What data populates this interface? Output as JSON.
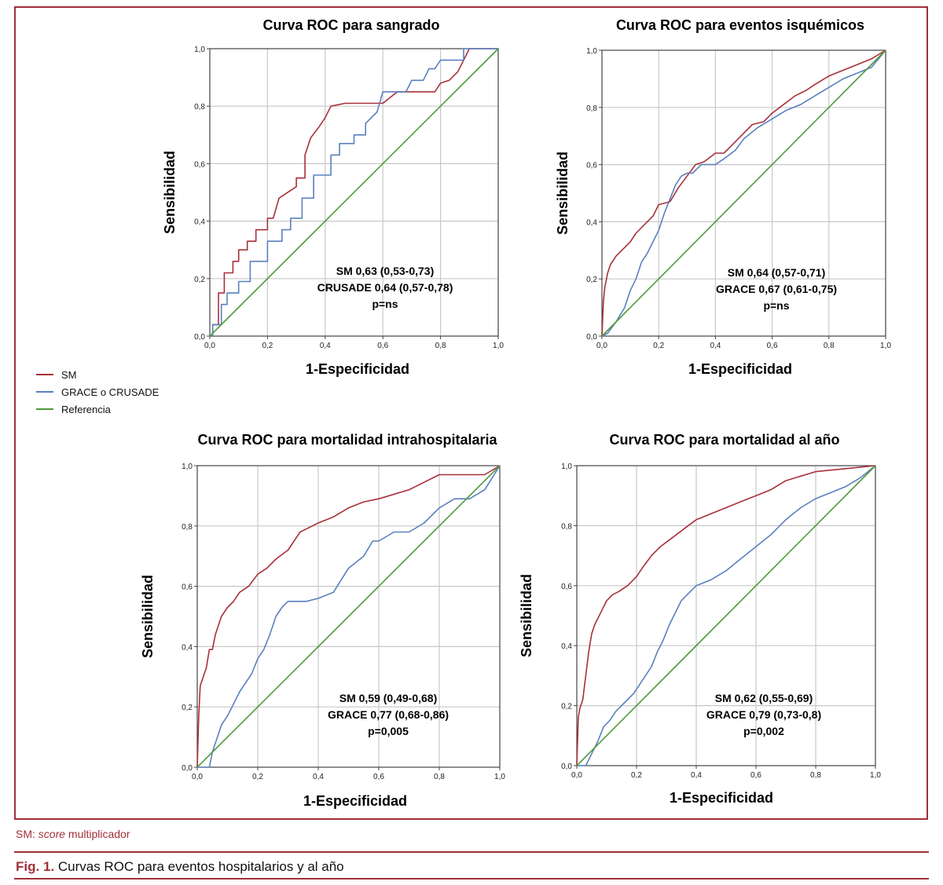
{
  "colors": {
    "sm": "#a8303a",
    "grace": "#5a80bf",
    "ref": "#4f9a3c",
    "accent": "#a03038",
    "grid": "#c8c8c8"
  },
  "legend": [
    {
      "label": "SM",
      "color": "#a8303a"
    },
    {
      "label": "GRACE o CRUSADE",
      "color": "#5a80bf"
    },
    {
      "label": "Referencia",
      "color": "#4f9a3c"
    }
  ],
  "footnote": {
    "prefix": "SM: ",
    "italic": "score",
    "suffix": " multiplicador"
  },
  "caption": {
    "label": "Fig. 1.",
    "text": " Curvas ROC para eventos hospitalarios y al año"
  },
  "chart_data": [
    {
      "type": "line",
      "title": "Curva ROC para sangrado",
      "xlabel": "1-Especificidad",
      "ylabel": "Sensibilidad",
      "xlim": [
        0,
        1
      ],
      "ylim": [
        0,
        1
      ],
      "ticks": [
        "0,0",
        "0,2",
        "0,4",
        "0,6",
        "0,8",
        "1,0"
      ],
      "annotation": [
        "SM 0,63 (0,53-0,73)",
        "CRUSADE 0,64 (0,57-0,78)",
        "p=ns"
      ],
      "series": [
        {
          "name": "SM",
          "x": [
            0,
            0.01,
            0.01,
            0.03,
            0.03,
            0.05,
            0.05,
            0.08,
            0.08,
            0.1,
            0.1,
            0.13,
            0.13,
            0.16,
            0.16,
            0.2,
            0.2,
            0.22,
            0.24,
            0.24,
            0.3,
            0.3,
            0.33,
            0.33,
            0.35,
            0.38,
            0.4,
            0.42,
            0.47,
            0.55,
            0.6,
            0.65,
            0.7,
            0.78,
            0.8,
            0.83,
            0.86,
            0.88,
            0.9,
            0.92,
            0.95,
            1.0
          ],
          "y": [
            0,
            0,
            0.04,
            0.04,
            0.15,
            0.15,
            0.22,
            0.22,
            0.26,
            0.26,
            0.3,
            0.3,
            0.33,
            0.33,
            0.37,
            0.37,
            0.41,
            0.41,
            0.48,
            0.48,
            0.52,
            0.55,
            0.55,
            0.63,
            0.69,
            0.73,
            0.76,
            0.8,
            0.81,
            0.81,
            0.81,
            0.85,
            0.85,
            0.85,
            0.88,
            0.89,
            0.92,
            0.96,
            1.0,
            1.0,
            1.0,
            1.0
          ]
        },
        {
          "name": "CRUSADE",
          "x": [
            0,
            0.01,
            0.01,
            0.04,
            0.04,
            0.06,
            0.06,
            0.1,
            0.1,
            0.14,
            0.14,
            0.2,
            0.2,
            0.25,
            0.25,
            0.28,
            0.28,
            0.32,
            0.32,
            0.36,
            0.36,
            0.42,
            0.42,
            0.45,
            0.45,
            0.5,
            0.5,
            0.54,
            0.54,
            0.58,
            0.6,
            0.62,
            0.65,
            0.68,
            0.7,
            0.74,
            0.76,
            0.78,
            0.8,
            0.88,
            0.88,
            0.95,
            0.95,
            1.0
          ],
          "y": [
            0,
            0,
            0.04,
            0.04,
            0.11,
            0.11,
            0.15,
            0.15,
            0.19,
            0.19,
            0.26,
            0.26,
            0.33,
            0.33,
            0.37,
            0.37,
            0.41,
            0.41,
            0.48,
            0.48,
            0.56,
            0.56,
            0.63,
            0.63,
            0.67,
            0.67,
            0.7,
            0.7,
            0.74,
            0.78,
            0.85,
            0.85,
            0.85,
            0.85,
            0.89,
            0.89,
            0.93,
            0.93,
            0.96,
            0.96,
            1.0,
            1.0,
            1.0,
            1.0
          ]
        },
        {
          "name": "Referencia",
          "x": [
            0,
            1
          ],
          "y": [
            0,
            1
          ]
        }
      ]
    },
    {
      "type": "line",
      "title": "Curva ROC para eventos isquémicos",
      "xlabel": "1-Especificidad",
      "ylabel": "Sensibilidad",
      "xlim": [
        0,
        1
      ],
      "ylim": [
        0,
        1
      ],
      "ticks": [
        "0,0",
        "0,2",
        "0,4",
        "0,6",
        "0,8",
        "1,0"
      ],
      "annotation": [
        "SM 0,64 (0,57-0,71)",
        "GRACE 0,67 (0,61-0,75)",
        "p=ns"
      ],
      "series": [
        {
          "name": "SM",
          "x": [
            0,
            0.005,
            0.01,
            0.02,
            0.03,
            0.05,
            0.07,
            0.1,
            0.12,
            0.15,
            0.18,
            0.2,
            0.24,
            0.27,
            0.3,
            0.33,
            0.36,
            0.4,
            0.43,
            0.45,
            0.5,
            0.53,
            0.57,
            0.6,
            0.64,
            0.68,
            0.72,
            0.75,
            0.8,
            0.85,
            0.9,
            0.95,
            1.0
          ],
          "y": [
            0,
            0.12,
            0.17,
            0.22,
            0.25,
            0.28,
            0.3,
            0.33,
            0.36,
            0.39,
            0.42,
            0.46,
            0.47,
            0.52,
            0.56,
            0.6,
            0.61,
            0.64,
            0.64,
            0.66,
            0.71,
            0.74,
            0.75,
            0.78,
            0.81,
            0.84,
            0.86,
            0.88,
            0.91,
            0.93,
            0.95,
            0.97,
            1.0
          ]
        },
        {
          "name": "GRACE",
          "x": [
            0,
            0.02,
            0.05,
            0.08,
            0.1,
            0.12,
            0.14,
            0.16,
            0.18,
            0.2,
            0.22,
            0.24,
            0.26,
            0.28,
            0.3,
            0.32,
            0.35,
            0.4,
            0.43,
            0.47,
            0.5,
            0.55,
            0.6,
            0.65,
            0.7,
            0.75,
            0.8,
            0.85,
            0.9,
            0.95,
            1.0
          ],
          "y": [
            0,
            0.01,
            0.05,
            0.1,
            0.16,
            0.2,
            0.26,
            0.29,
            0.33,
            0.37,
            0.43,
            0.48,
            0.53,
            0.56,
            0.57,
            0.57,
            0.6,
            0.6,
            0.62,
            0.65,
            0.69,
            0.73,
            0.76,
            0.79,
            0.81,
            0.84,
            0.87,
            0.9,
            0.92,
            0.94,
            1.0
          ]
        },
        {
          "name": "Referencia",
          "x": [
            0,
            1
          ],
          "y": [
            0,
            1
          ]
        }
      ]
    },
    {
      "type": "line",
      "title": "Curva ROC para mortalidad intrahospitalaria",
      "xlabel": "1-Especificidad",
      "ylabel": "Sensibilidad",
      "xlim": [
        0,
        1
      ],
      "ylim": [
        0,
        1
      ],
      "ticks": [
        "0,0",
        "0,2",
        "0,4",
        "0,6",
        "0,8",
        "1,0"
      ],
      "annotation": [
        "SM 0,59 (0,49-0,68)",
        "GRACE 0,77 (0,68-0,86)",
        "p=0,005"
      ],
      "series": [
        {
          "name": "SM",
          "x": [
            0,
            0.005,
            0.01,
            0.02,
            0.03,
            0.04,
            0.05,
            0.06,
            0.08,
            0.1,
            0.12,
            0.14,
            0.17,
            0.2,
            0.23,
            0.26,
            0.3,
            0.34,
            0.38,
            0.4,
            0.45,
            0.5,
            0.55,
            0.6,
            0.7,
            0.8,
            0.95,
            1.0
          ],
          "y": [
            0,
            0.17,
            0.27,
            0.3,
            0.33,
            0.39,
            0.39,
            0.44,
            0.5,
            0.53,
            0.55,
            0.58,
            0.6,
            0.64,
            0.66,
            0.69,
            0.72,
            0.78,
            0.8,
            0.81,
            0.83,
            0.86,
            0.88,
            0.89,
            0.92,
            0.97,
            0.97,
            1.0
          ]
        },
        {
          "name": "GRACE",
          "x": [
            0,
            0.04,
            0.05,
            0.08,
            0.1,
            0.12,
            0.14,
            0.16,
            0.18,
            0.2,
            0.22,
            0.24,
            0.26,
            0.28,
            0.3,
            0.33,
            0.36,
            0.4,
            0.45,
            0.5,
            0.55,
            0.58,
            0.6,
            0.65,
            0.7,
            0.75,
            0.8,
            0.85,
            0.9,
            0.95,
            1.0
          ],
          "y": [
            0,
            0.0,
            0.05,
            0.14,
            0.17,
            0.21,
            0.25,
            0.28,
            0.31,
            0.36,
            0.39,
            0.44,
            0.5,
            0.53,
            0.55,
            0.55,
            0.55,
            0.56,
            0.58,
            0.66,
            0.7,
            0.75,
            0.75,
            0.78,
            0.78,
            0.81,
            0.86,
            0.89,
            0.89,
            0.92,
            1.0
          ]
        },
        {
          "name": "Referencia",
          "x": [
            0,
            1
          ],
          "y": [
            0,
            1
          ]
        }
      ]
    },
    {
      "type": "line",
      "title": "Curva ROC para mortalidad al año",
      "xlabel": "1-Especificidad",
      "ylabel": "Sensibilidad",
      "xlim": [
        0,
        1
      ],
      "ylim": [
        0,
        1
      ],
      "ticks": [
        "0,0",
        "0,2",
        "0,4",
        "0,6",
        "0,8",
        "1,0"
      ],
      "annotation": [
        "SM 0,62 (0,55-0,69)",
        "GRACE 0,79 (0,73-0,8)",
        "p=0,002"
      ],
      "series": [
        {
          "name": "SM",
          "x": [
            0,
            0.005,
            0.01,
            0.02,
            0.03,
            0.04,
            0.05,
            0.06,
            0.08,
            0.1,
            0.12,
            0.14,
            0.17,
            0.2,
            0.22,
            0.25,
            0.28,
            0.32,
            0.36,
            0.4,
            0.45,
            0.5,
            0.55,
            0.6,
            0.65,
            0.7,
            0.8,
            0.9,
            1.0
          ],
          "y": [
            0,
            0.16,
            0.19,
            0.22,
            0.3,
            0.38,
            0.44,
            0.47,
            0.51,
            0.55,
            0.57,
            0.58,
            0.6,
            0.63,
            0.66,
            0.7,
            0.73,
            0.76,
            0.79,
            0.82,
            0.84,
            0.86,
            0.88,
            0.9,
            0.92,
            0.95,
            0.98,
            0.99,
            1.0
          ]
        },
        {
          "name": "GRACE",
          "x": [
            0,
            0.03,
            0.05,
            0.07,
            0.09,
            0.11,
            0.13,
            0.15,
            0.17,
            0.19,
            0.21,
            0.23,
            0.25,
            0.27,
            0.29,
            0.31,
            0.35,
            0.4,
            0.45,
            0.5,
            0.55,
            0.6,
            0.65,
            0.7,
            0.75,
            0.8,
            0.85,
            0.9,
            0.95,
            1.0
          ],
          "y": [
            0,
            0.0,
            0.04,
            0.08,
            0.13,
            0.15,
            0.18,
            0.2,
            0.22,
            0.24,
            0.27,
            0.3,
            0.33,
            0.38,
            0.42,
            0.47,
            0.55,
            0.6,
            0.62,
            0.65,
            0.69,
            0.73,
            0.77,
            0.82,
            0.86,
            0.89,
            0.91,
            0.93,
            0.96,
            1.0
          ]
        },
        {
          "name": "Referencia",
          "x": [
            0,
            1
          ],
          "y": [
            0,
            1
          ]
        }
      ]
    }
  ]
}
